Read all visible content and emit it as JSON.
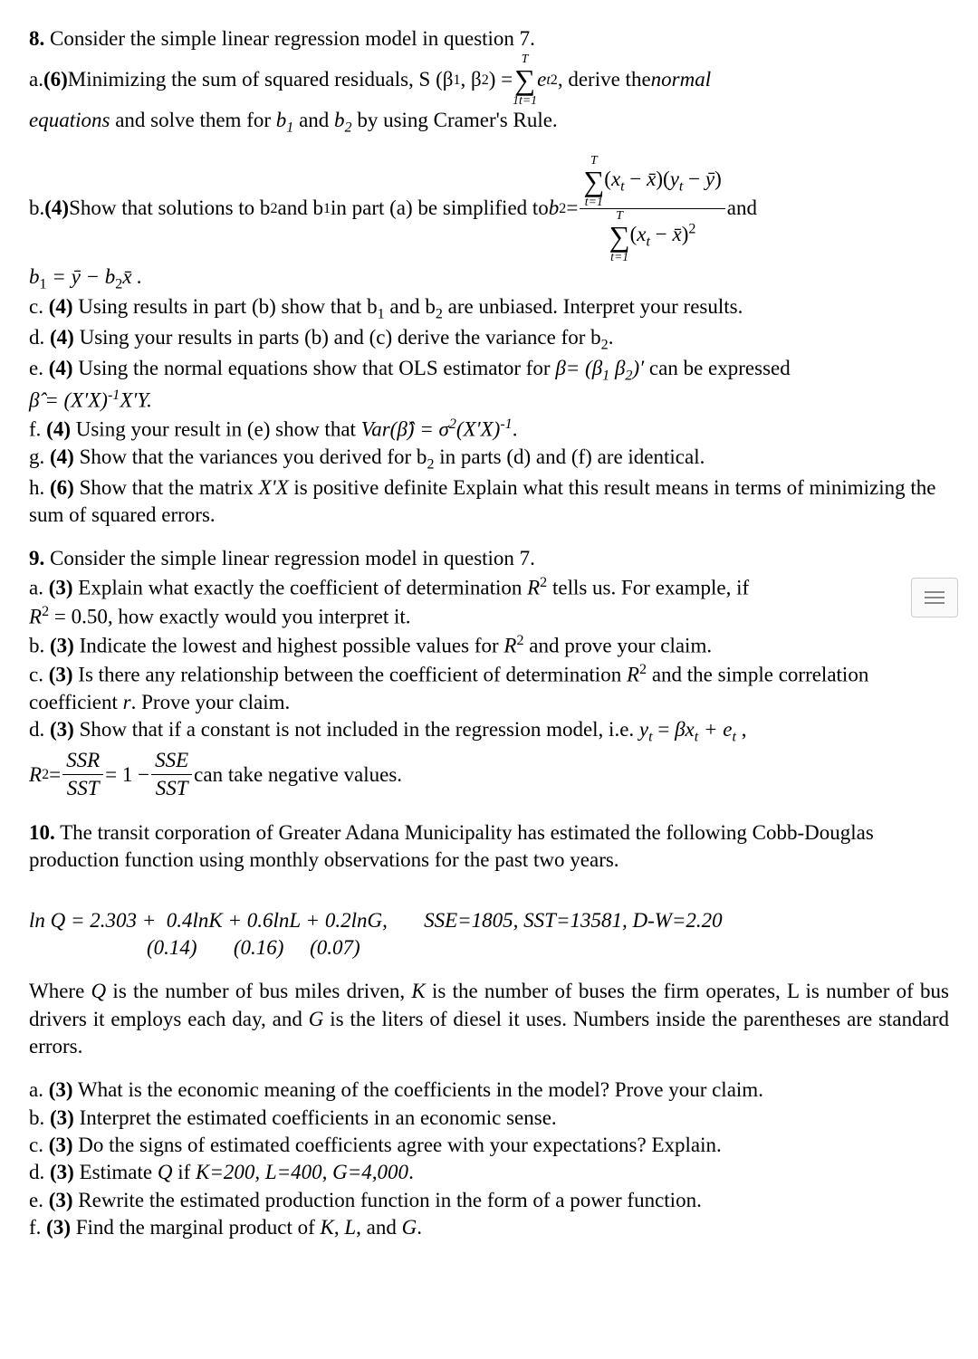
{
  "q8": {
    "hdr": "8.",
    "intro": " Consider the simple linear regression model in question 7.",
    "a1": "a. ",
    "a1pts": "(6)",
    "a1t": " Minimizing the sum of squared residuals, S (β",
    "a1t2": ", β",
    "a1t3": ") = ",
    "sumT": "T",
    "sum1": "1t=1",
    "et": "e",
    "a1t4": " , derive the ",
    "normal": "normal",
    "eqs": "equations",
    "a1t5": " and solve them for ",
    "b1": "b",
    "and": " and ",
    "b2": "b",
    "a1t6": " by using Cramer's Rule.",
    "b": "b. ",
    "bpts": "(4)",
    "bt": " Show that solutions to b",
    "bt2": " and b",
    "bt3": " in part (a) be simplified to ",
    "b2eq": "b",
    "eq": " = ",
    "xt": "x",
    "yt": "y",
    "xbar": "x̄",
    "ybar": "ȳ",
    "bt4": " and",
    "b1eq": "b",
    "b1rhs": " = ȳ − b",
    "b1end": "x̄ .",
    "sub1": "1",
    "sub2": "2",
    "subt": "t",
    "c": "c. ",
    "cpts": "(4)",
    "ct": " Using results in part (b) show that b",
    "ct2": " and b",
    "ct3": " are unbiased. Interpret your results.",
    "d": "d. ",
    "dpts": "(4)",
    "dt": " Using your results in parts (b) and (c) derive the variance for b",
    "dt2": ".",
    "e": "e. ",
    "epts": "(4)",
    "et1": " Using the normal equations show that OLS estimator for ",
    "beta": "β= (β",
    "beta2": " β",
    "beta3": ")′",
    "et2": " can be expressed",
    "bhat": "β̂",
    "erhs": " = (X′X)",
    "em1": "-1",
    "erhs2": "X′Y.",
    "f": "f. ",
    "fpts": "(4)",
    "ft": " Using your result in (e) show that ",
    "var": "Var(",
    "ft2": ") = σ",
    "ft3": "(X′X)",
    "ft4": ".",
    "g": "g. ",
    "gpts": "(4)",
    "gt": " Show that the variances you derived for b",
    "gt2": " in parts (d) and (f) are identical.",
    "h": "h. ",
    "hpts": "(6)",
    "ht": " Show that the matrix ",
    "xx": "X'X",
    "ht2": " is positive definite",
    ".": ".",
    "ht3": " Explain what this result means in terms of minimizing the sum of squared errors."
  },
  "q9": {
    "hdr": "9.",
    "intro": " Consider the simple linear regression model in question 7.",
    "a": "a. ",
    "apts": "(3)",
    "at": " Explain what exactly the coefficient of determination ",
    "R": "R",
    "at2": " tells us.  For example, if ",
    "r2eq": "R",
    "r2val": " = 0.50",
    "at3": ", how exactly would you interpret it.",
    "b": "b. ",
    "bpts": "(3)",
    "bt": " Indicate the lowest and highest possible values for ",
    "bt2": " and prove your claim.",
    "c": "c. ",
    "cpts": "(3)",
    "ct": " Is there any relationship between the coefficient of determination ",
    "ct2": " and the simple correlation coefficient ",
    "r": "r",
    "ct3": ".  Prove your claim.",
    "d": "d. ",
    "dpts": "(3)",
    "dt": " Show that if a constant is not included in the regression model, i.e. ",
    "yt": "y",
    "dt2": " = ",
    "bx": " βx",
    "dt3": " + e",
    "dt4": " ,",
    "r2f": "R",
    "SSR": "SSR",
    "SST": "SST",
    "SSE": "SSE",
    "one": " = 1 − ",
    "dt5": " can take negative values."
  },
  "q10": {
    "hdr": "10.",
    "intro": " The transit corporation of Greater Adana Municipality has estimated the following Cobb-Douglas production function using monthly observations for the past two years.",
    "eq": "ln Q = 2.303 +  0.4lnK + 0.6lnL + 0.2lnG,       SSE=1805, SST=13581, D-W=2.20",
    "se": "(0.14)       (0.16)     (0.07)",
    "where": "Where ",
    "Q": "Q",
    "w2": " is the number of bus miles driven, ",
    "K": "K",
    "w3": " is the number of buses the firm operates, L is number of bus drivers it employs each day, and ",
    "G": "G",
    "w4": " is the liters of diesel it uses. Numbers inside the parentheses are standard errors.",
    "a": "a. ",
    "apts": "(3)",
    "at": " What is the economic meaning of the coefficients in the model? Prove your claim.",
    "b": "b. ",
    "bpts": "(3)",
    "bt": " Interpret the estimated coefficients in an economic sense.",
    "c": "c. ",
    "cpts": "(3)",
    "ct": " Do the signs of estimated coefficients agree with your expectations? Explain.",
    "d": "d. ",
    "dpts": "(3)",
    "dt": " Estimate ",
    "dt2": " if ",
    "dkl": "K=200, L=400, G=4,000",
    "dt3": ".",
    "e": "e. ",
    "epts": "(3)",
    "et": " Rewrite the estimated production function in the form of a power function.",
    "f": "f. ",
    "fpts": "(3)",
    "ft": " Find the marginal product of ",
    "ft2": ", ",
    "L": "L",
    "ft3": ", and ",
    "ft4": "."
  }
}
